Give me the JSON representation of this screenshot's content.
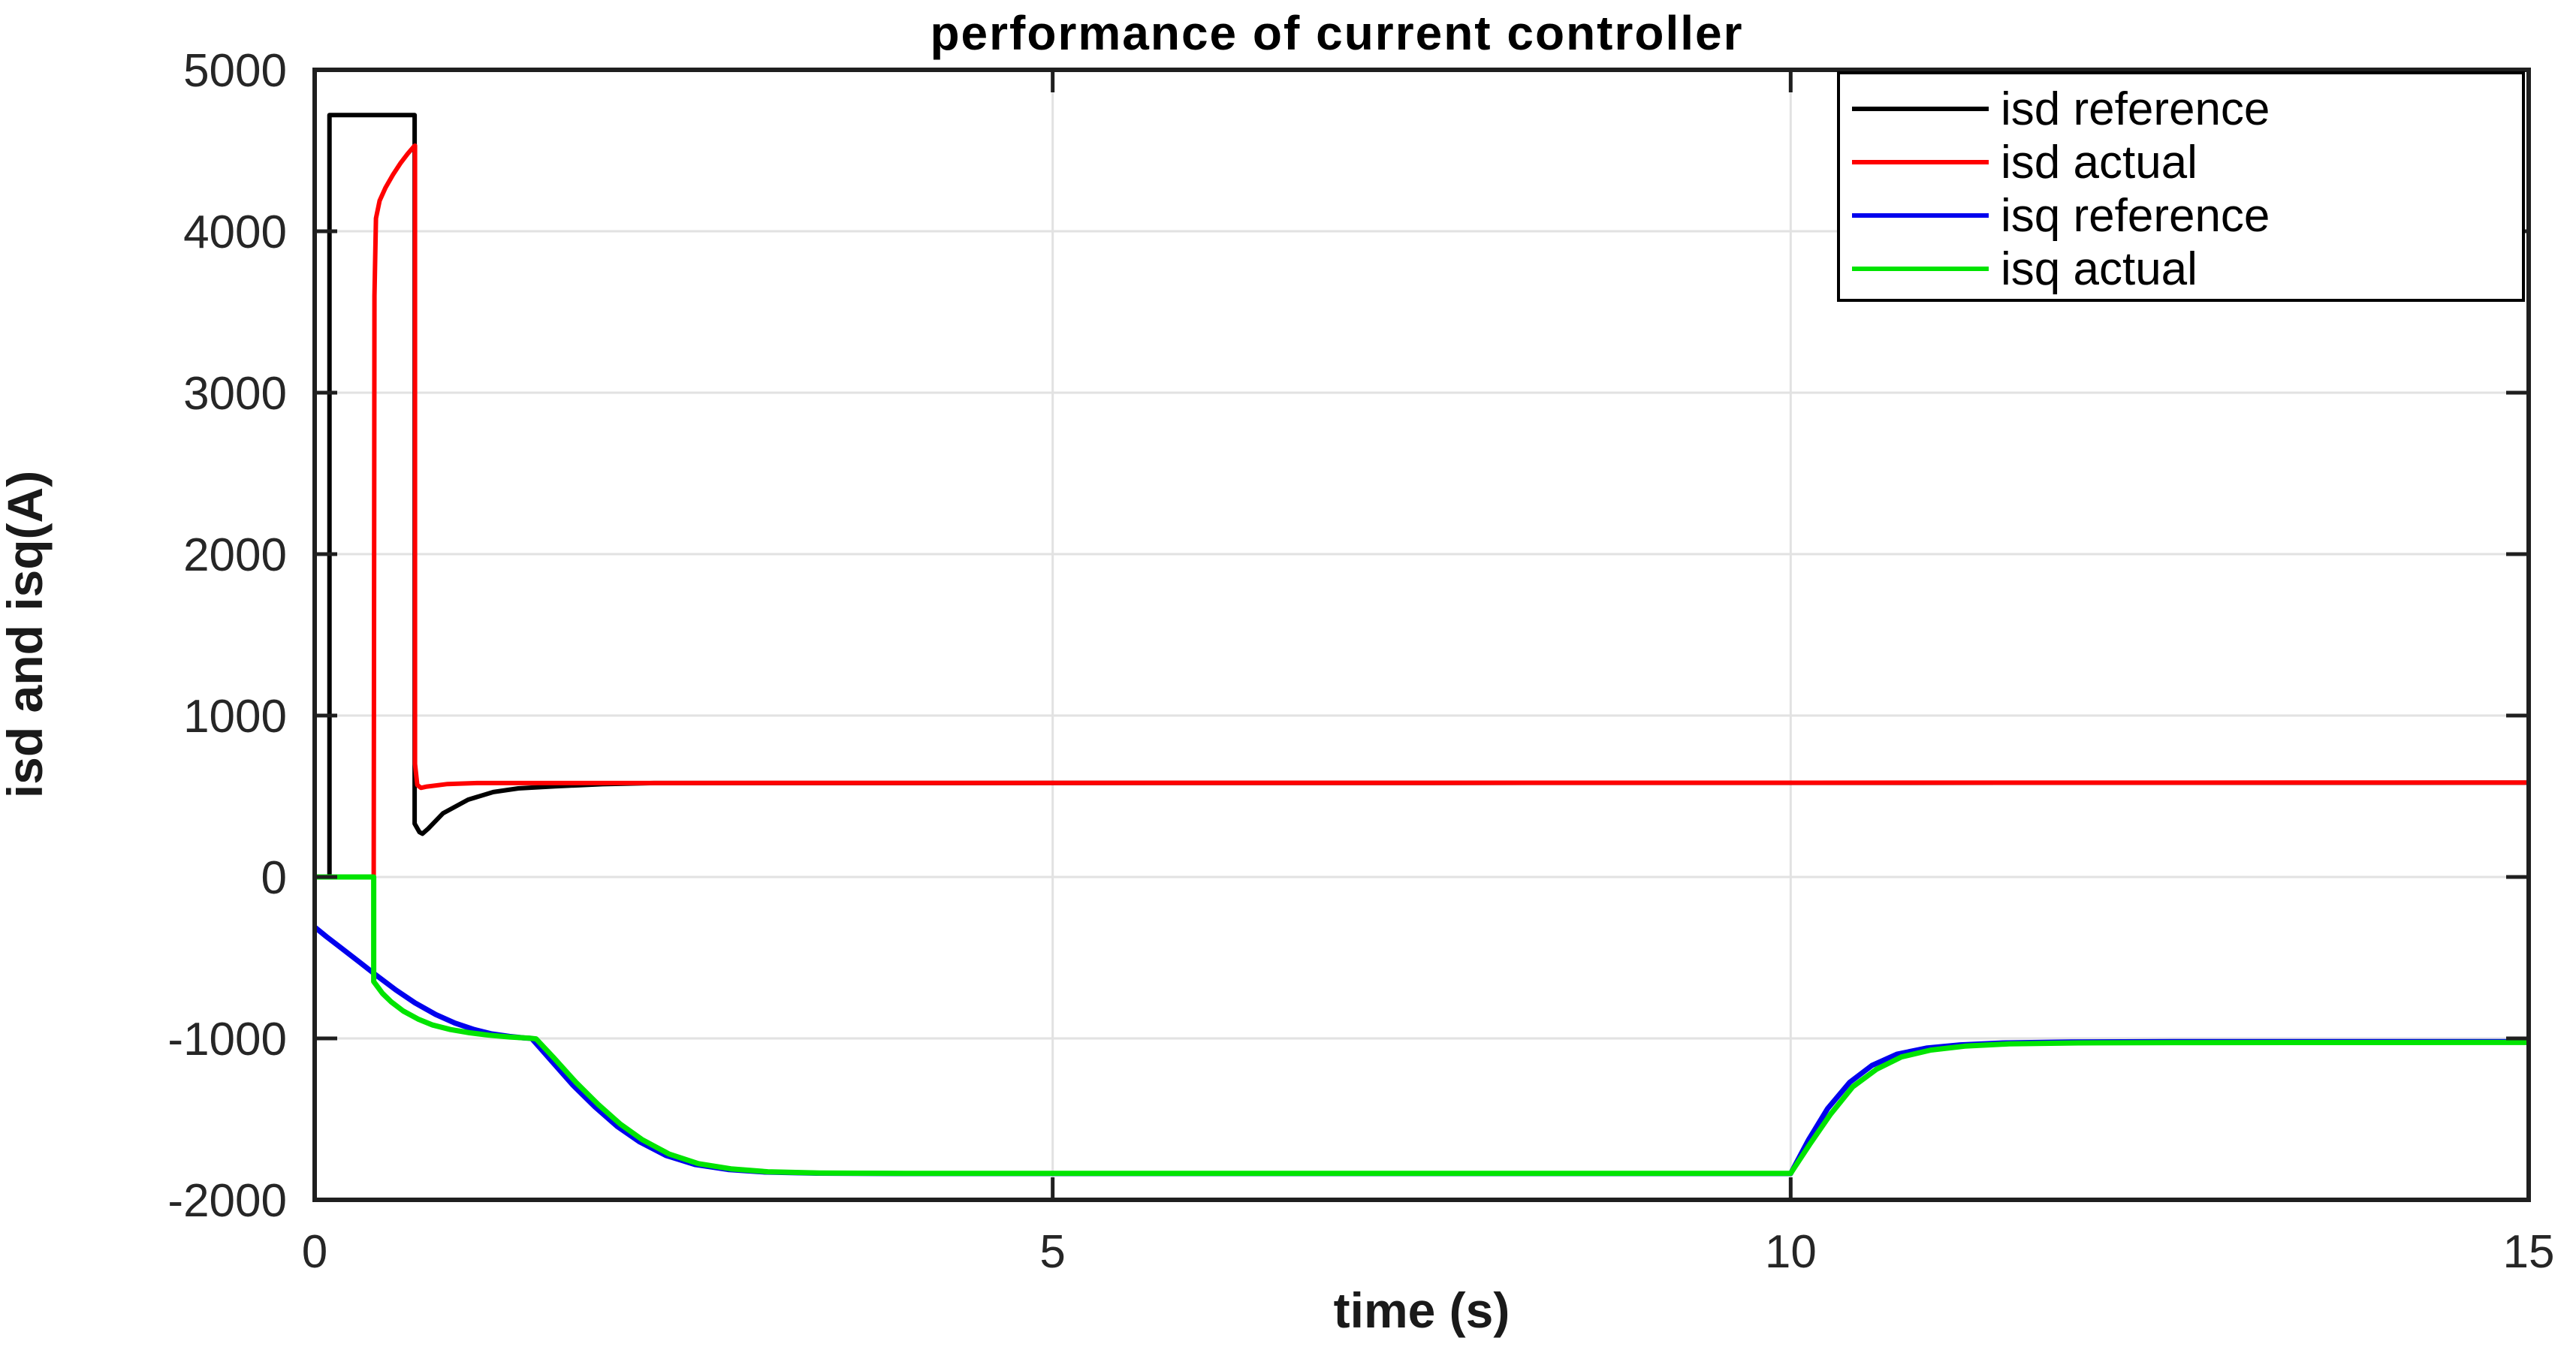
{
  "figure": {
    "background_color": "#ffffff",
    "axis_color": "#1f1f1f",
    "grid_color": "#e2e2e2",
    "tick_label_color": "#262626"
  },
  "chart_data": {
    "type": "line",
    "title": "performance of current controller",
    "xlabel": "time (s)",
    "ylabel": "isd and isq(A)",
    "xlim": [
      0,
      15
    ],
    "ylim": [
      -2000,
      5000
    ],
    "x_ticks": [
      0,
      5,
      10,
      15
    ],
    "x_tick_labels": [
      "0",
      "5",
      "10",
      "15"
    ],
    "y_ticks": [
      -2000,
      -1000,
      0,
      1000,
      2000,
      3000,
      4000,
      5000
    ],
    "y_tick_labels": [
      "-2000",
      "-1000",
      "0",
      "1000",
      "2000",
      "3000",
      "4000",
      "5000"
    ],
    "grid": true,
    "legend_position": "top-right",
    "series": [
      {
        "name": "isd reference",
        "color": "#000000",
        "width": 6,
        "points": [
          [
            0,
            0
          ],
          [
            0.1,
            0
          ],
          [
            0.1,
            4720
          ],
          [
            0.677,
            4720
          ],
          [
            0.677,
            330
          ],
          [
            0.71,
            278
          ],
          [
            0.73,
            268
          ],
          [
            0.77,
            300
          ],
          [
            0.87,
            395
          ],
          [
            1.04,
            479
          ],
          [
            1.21,
            526
          ],
          [
            1.38,
            549
          ],
          [
            1.63,
            562
          ],
          [
            1.95,
            575
          ],
          [
            2.3,
            582
          ],
          [
            15,
            584
          ]
        ]
      },
      {
        "name": "isd actual",
        "color": "#ff0000",
        "width": 6,
        "points": [
          [
            0,
            0
          ],
          [
            0.4,
            0
          ],
          [
            0.405,
            3600
          ],
          [
            0.415,
            4080
          ],
          [
            0.44,
            4190
          ],
          [
            0.48,
            4270
          ],
          [
            0.53,
            4350
          ],
          [
            0.58,
            4420
          ],
          [
            0.63,
            4480
          ],
          [
            0.675,
            4528
          ],
          [
            0.68,
            4530
          ],
          [
            0.68,
            700
          ],
          [
            0.695,
            570
          ],
          [
            0.72,
            552
          ],
          [
            0.76,
            560
          ],
          [
            0.9,
            576
          ],
          [
            1.1,
            582
          ],
          [
            15,
            585
          ]
        ]
      },
      {
        "name": "isq reference",
        "color": "#0000ee",
        "width": 7,
        "points": [
          [
            0,
            -310
          ],
          [
            0.08,
            -370
          ],
          [
            0.18,
            -440
          ],
          [
            0.3,
            -525
          ],
          [
            0.42,
            -610
          ],
          [
            0.55,
            -700
          ],
          [
            0.68,
            -780
          ],
          [
            0.82,
            -852
          ],
          [
            0.95,
            -905
          ],
          [
            1.08,
            -945
          ],
          [
            1.2,
            -972
          ],
          [
            1.32,
            -988
          ],
          [
            1.42,
            -997
          ],
          [
            1.47,
            -1000
          ],
          [
            1.6,
            -1135
          ],
          [
            1.75,
            -1290
          ],
          [
            1.9,
            -1425
          ],
          [
            2.05,
            -1545
          ],
          [
            2.2,
            -1640
          ],
          [
            2.38,
            -1725
          ],
          [
            2.58,
            -1782
          ],
          [
            2.8,
            -1812
          ],
          [
            3.05,
            -1828
          ],
          [
            3.4,
            -1835
          ],
          [
            4.0,
            -1837
          ],
          [
            10.0,
            -1837
          ],
          [
            10.12,
            -1630
          ],
          [
            10.25,
            -1435
          ],
          [
            10.4,
            -1272
          ],
          [
            10.55,
            -1168
          ],
          [
            10.72,
            -1098
          ],
          [
            10.92,
            -1060
          ],
          [
            11.15,
            -1040
          ],
          [
            11.45,
            -1028
          ],
          [
            11.9,
            -1022
          ],
          [
            12.6,
            -1020
          ],
          [
            15,
            -1020
          ]
        ]
      },
      {
        "name": "isq actual",
        "color": "#00e400",
        "width": 7,
        "points": [
          [
            0,
            0
          ],
          [
            0.4,
            0
          ],
          [
            0.4,
            -648
          ],
          [
            0.46,
            -722
          ],
          [
            0.52,
            -775
          ],
          [
            0.6,
            -830
          ],
          [
            0.7,
            -880
          ],
          [
            0.8,
            -917
          ],
          [
            0.92,
            -945
          ],
          [
            1.05,
            -965
          ],
          [
            1.18,
            -980
          ],
          [
            1.32,
            -991
          ],
          [
            1.45,
            -998
          ],
          [
            1.5,
            -1003
          ],
          [
            1.62,
            -1120
          ],
          [
            1.77,
            -1272
          ],
          [
            1.92,
            -1408
          ],
          [
            2.07,
            -1530
          ],
          [
            2.22,
            -1628
          ],
          [
            2.4,
            -1716
          ],
          [
            2.6,
            -1776
          ],
          [
            2.82,
            -1808
          ],
          [
            3.07,
            -1826
          ],
          [
            3.42,
            -1834
          ],
          [
            4.0,
            -1836
          ],
          [
            10.0,
            -1836
          ],
          [
            10.13,
            -1655
          ],
          [
            10.27,
            -1470
          ],
          [
            10.42,
            -1300
          ],
          [
            10.58,
            -1192
          ],
          [
            10.75,
            -1115
          ],
          [
            10.95,
            -1072
          ],
          [
            11.18,
            -1048
          ],
          [
            11.48,
            -1034
          ],
          [
            11.95,
            -1028
          ],
          [
            12.6,
            -1026
          ],
          [
            15,
            -1025
          ]
        ]
      }
    ]
  }
}
